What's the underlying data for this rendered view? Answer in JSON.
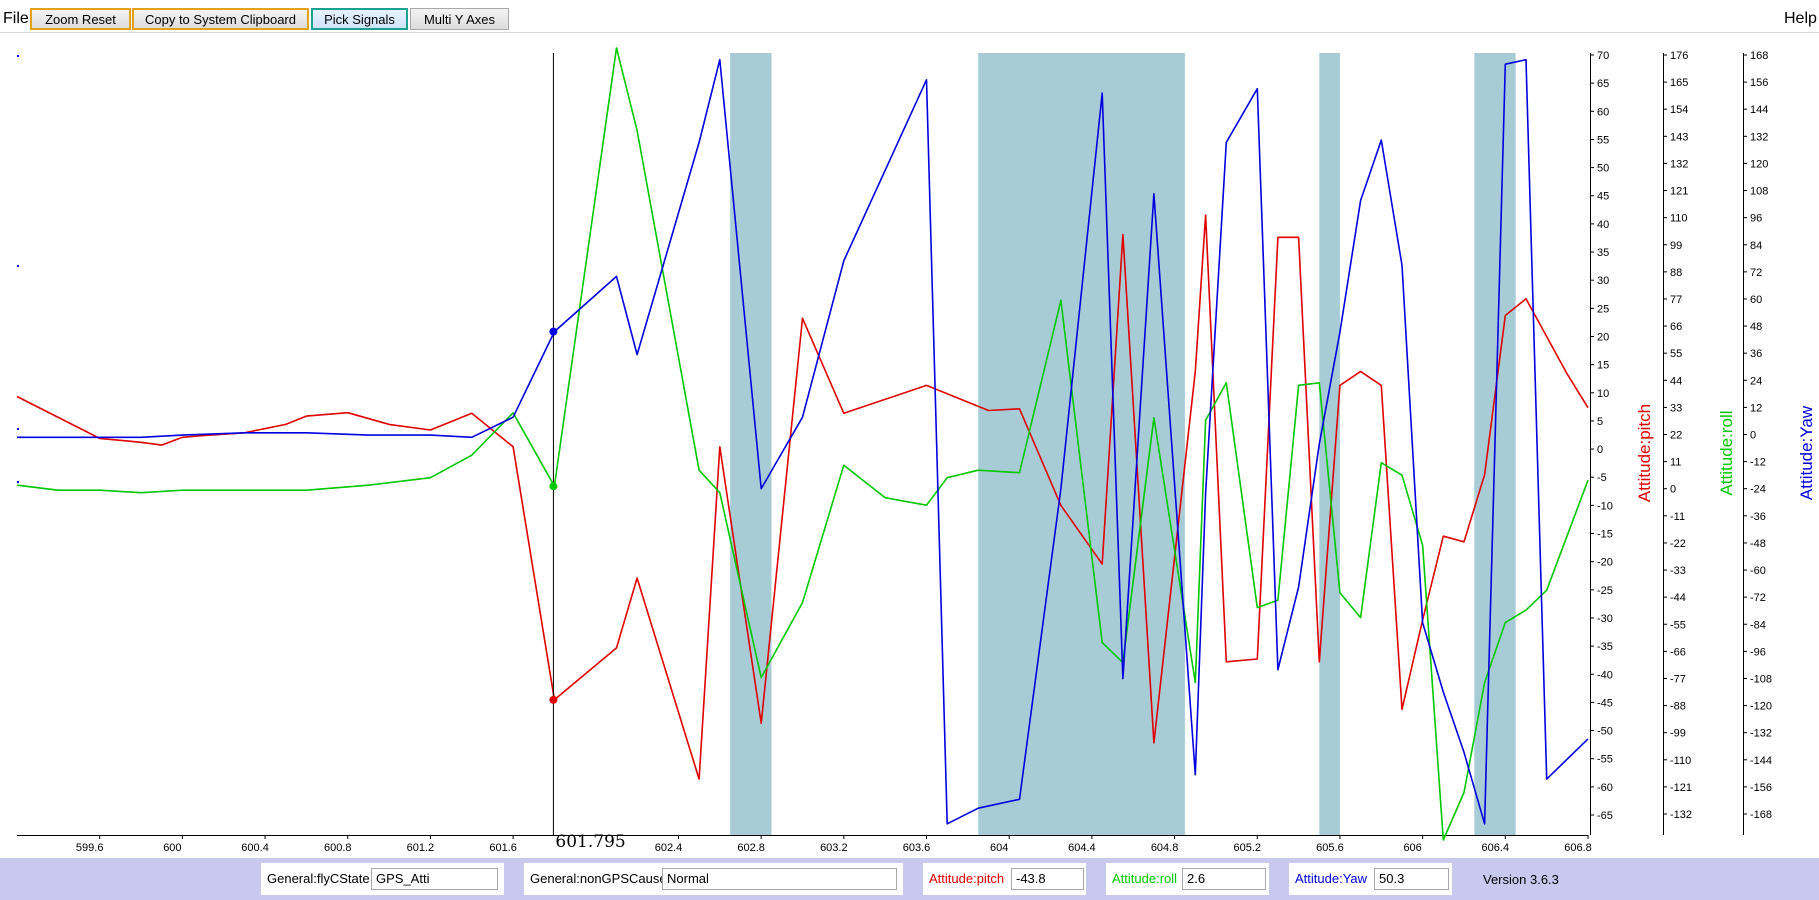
{
  "toolbar": {
    "file_label": "File",
    "help_label": "Help",
    "buttons": [
      "Zoom Reset",
      "Copy to System Clipboard",
      "Pick Signals",
      "Multi Y Axes"
    ]
  },
  "chart_data": {
    "type": "line",
    "cursor": {
      "x": 601.795,
      "label": "601.795"
    },
    "x_axis": {
      "range": [
        599.2,
        606.8
      ],
      "ticks": [
        599.6,
        600,
        600.4,
        600.8,
        601.2,
        601.6,
        602.4,
        602.8,
        603.2,
        603.6,
        604,
        604.4,
        604.8,
        605.2,
        605.6,
        606,
        606.4,
        606.8
      ]
    },
    "highlight_bands": [
      [
        602.65,
        602.85
      ],
      [
        603.85,
        604.85
      ],
      [
        605.5,
        605.6
      ],
      [
        606.25,
        606.45
      ]
    ],
    "axes": [
      {
        "label": "Attitude:pitch",
        "color": "#e00000",
        "range": [
          -68,
          72
        ],
        "ticks": [
          70,
          65,
          60,
          55,
          50,
          45,
          40,
          35,
          30,
          25,
          20,
          15,
          10,
          5,
          0,
          -5,
          -10,
          -15,
          -20,
          -25,
          -30,
          -35,
          -40,
          -45,
          -50,
          -55,
          -60,
          -65
        ]
      },
      {
        "label": "Attitude:roll",
        "color": "#00c800",
        "range": [
          -137,
          176
        ],
        "ticks": [
          176,
          165,
          154,
          143,
          132,
          121,
          110,
          99,
          88,
          77,
          66,
          55,
          44,
          33,
          22,
          11,
          0,
          -11,
          -22,
          -33,
          -44,
          -55,
          -66,
          -77,
          -88,
          -99,
          -110,
          -121,
          -132
        ]
      },
      {
        "label": "Attitude:Yaw",
        "color": "#0000e0",
        "range": [
          -175,
          175
        ],
        "ticks": [
          168,
          156,
          144,
          132,
          120,
          108,
          96,
          84,
          72,
          60,
          48,
          36,
          24,
          12,
          0,
          -12,
          -24,
          -36,
          -48,
          -60,
          -72,
          -84,
          -96,
          -108,
          -120,
          -132,
          -144,
          -156,
          -168
        ]
      }
    ],
    "series": [
      {
        "name": "Attitude:pitch",
        "axis": 0,
        "color": "#e00000",
        "x": [
          599.2,
          599.6,
          599.8,
          599.9,
          600,
          600.1,
          600.3,
          600.5,
          600.6,
          600.8,
          601,
          601.2,
          601.4,
          601.6,
          601.8,
          602.1,
          602.2,
          602.5,
          602.6,
          602.8,
          603,
          603.2,
          603.6,
          603.7,
          603.9,
          604.05,
          604.25,
          604.45,
          604.55,
          604.7,
          604.9,
          604.95,
          605.05,
          605.2,
          605.3,
          605.4,
          605.5,
          605.6,
          605.7,
          605.8,
          605.9,
          606.0,
          606.1,
          606.2,
          606.3,
          606.4,
          606.5,
          606.7,
          606.8
        ],
        "y": [
          10.5,
          3,
          2.3,
          1.8,
          3.2,
          3.5,
          4,
          5.5,
          7,
          7.6,
          5.5,
          4.5,
          7.5,
          1.5,
          -43.8,
          -34.5,
          -22,
          -58,
          1.5,
          -48,
          24.5,
          7.5,
          12.5,
          11,
          8,
          8.3,
          -9,
          -19.5,
          39.5,
          -51.5,
          15,
          43,
          -37,
          -36.5,
          39,
          39,
          -37,
          12.5,
          15,
          12.5,
          -45.5,
          -29.5,
          -14.5,
          -15.5,
          -3.5,
          25,
          28,
          14.5,
          8.5
        ]
      },
      {
        "name": "Attitude:roll",
        "axis": 1,
        "color": "#00c800",
        "x": [
          599.2,
          599.4,
          599.6,
          599.8,
          600,
          600.3,
          600.6,
          600.9,
          601.2,
          601.4,
          601.6,
          601.8,
          602.1,
          602.2,
          602.5,
          602.6,
          602.8,
          603,
          603.2,
          603.4,
          603.6,
          603.7,
          603.85,
          604.05,
          604.25,
          604.45,
          604.55,
          604.7,
          604.9,
          604.95,
          605.05,
          605.2,
          605.3,
          605.4,
          605.5,
          605.6,
          605.7,
          605.8,
          605.9,
          606.0,
          606.1,
          606.2,
          606.3,
          606.4,
          606.5,
          606.6,
          606.8
        ],
        "y": [
          3,
          1,
          1,
          0,
          1,
          1,
          1,
          3,
          6,
          15,
          32,
          2.6,
          178,
          145,
          9,
          0,
          -74,
          -44,
          11,
          -2,
          -5,
          6,
          9,
          8,
          77,
          -60,
          -68,
          30,
          -76,
          29,
          44,
          -46,
          -43,
          43,
          44,
          -40,
          -50,
          12,
          7,
          -21,
          -139,
          -120,
          -76,
          -52,
          -47,
          -39,
          5
        ]
      },
      {
        "name": "Attitude:Yaw",
        "axis": 2,
        "color": "#0000e0",
        "x": [
          599.2,
          599.6,
          599.8,
          600,
          600.3,
          600.6,
          600.9,
          601.2,
          601.4,
          601.6,
          601.8,
          602.1,
          602.2,
          602.5,
          602.6,
          602.8,
          603,
          603.2,
          603.6,
          603.7,
          603.85,
          604.05,
          604.25,
          604.45,
          604.55,
          604.7,
          604.9,
          604.95,
          605.05,
          605.2,
          605.3,
          605.4,
          605.5,
          605.6,
          605.7,
          605.8,
          605.9,
          606.0,
          606.1,
          606.2,
          606.3,
          606.4,
          606.5,
          606.6,
          606.8
        ],
        "y": [
          3,
          3,
          3,
          4,
          5,
          5,
          4,
          4,
          3,
          12,
          50.3,
          75,
          40,
          135,
          172,
          -20,
          12,
          82,
          163,
          -170,
          -163,
          -159,
          -20,
          157,
          -105,
          112,
          -148,
          -22,
          135,
          159,
          -101,
          -64,
          0,
          50,
          109,
          136,
          80,
          -80,
          -111,
          -138,
          -170,
          170,
          172,
          -150,
          -132
        ]
      }
    ],
    "cursor_markers": [
      {
        "axis": 0,
        "value": -43.8
      },
      {
        "axis": 1,
        "value": 2.6
      },
      {
        "axis": 2,
        "value": 50.3
      }
    ]
  },
  "status": {
    "fields": [
      {
        "label": "General:flyCState",
        "value": "GPS_Atti",
        "color": "#000000"
      },
      {
        "label": "General:nonGPSCause",
        "value": "Normal",
        "color": "#000000"
      },
      {
        "label": "Attitude:pitch",
        "value": "-43.8",
        "color": "#e00000"
      },
      {
        "label": "Attitude:roll",
        "value": "2.6",
        "color": "#00c800"
      },
      {
        "label": "Attitude:Yaw",
        "value": "50.3",
        "color": "#0000e0"
      }
    ],
    "version": "Version 3.6.3"
  }
}
